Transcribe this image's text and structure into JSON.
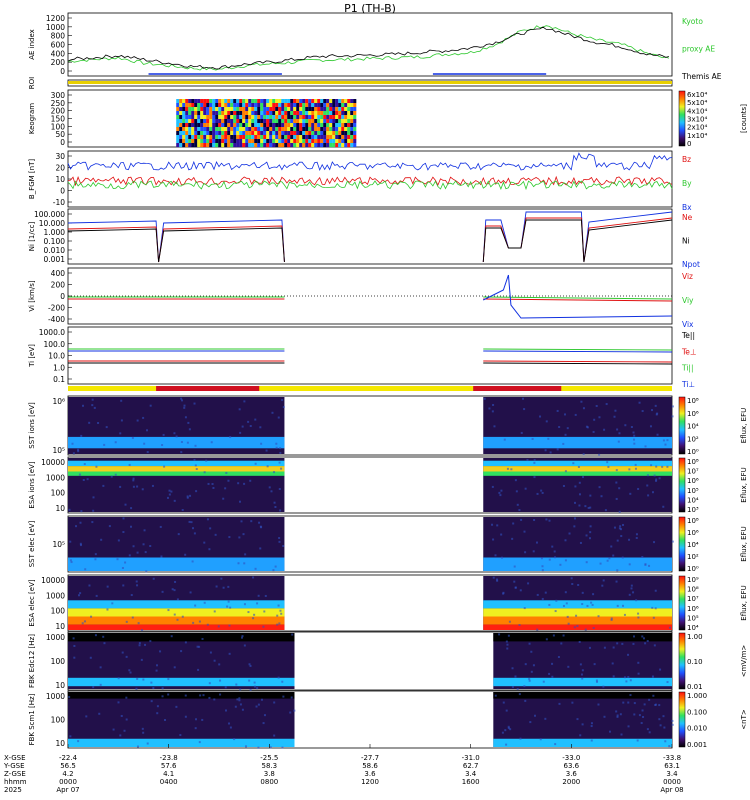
{
  "title": "P1 (TH-B)",
  "colors": {
    "black": "#000000",
    "green": "#2ec82e",
    "red": "#e01010",
    "blue": "#1030e0",
    "yellow": "#f5e800",
    "darkred": "#d01020"
  },
  "chart_data": {
    "type": "time-series-stack",
    "panels": [
      {
        "id": "ae",
        "ylabel": "AE index",
        "ticks": [
          "1200",
          "1000",
          "800",
          "600",
          "400",
          "200",
          "0"
        ],
        "legend": [
          {
            "text": "Kyoto",
            "color": "green"
          },
          {
            "text": "proxy AE",
            "color": "green"
          },
          {
            "text": "Themis AE",
            "color": "black"
          }
        ],
        "series": [
          {
            "name": "Kyoto proxy AE",
            "color": "green",
            "x": [
              0,
              1,
              2,
              3,
              4,
              5,
              6,
              7,
              8,
              9,
              10,
              11,
              12,
              13,
              14,
              15,
              16,
              17,
              18,
              19,
              20,
              21,
              22,
              23,
              24
            ],
            "y": [
              220,
              260,
              300,
              180,
              120,
              60,
              40,
              120,
              160,
              200,
              250,
              260,
              280,
              300,
              320,
              380,
              420,
              600,
              900,
              1050,
              850,
              700,
              600,
              400,
              250
            ]
          },
          {
            "name": "Themis AE",
            "color": "black",
            "x": [
              0,
              1,
              2,
              3,
              4,
              5,
              6,
              7,
              8,
              9,
              10,
              11,
              12,
              13,
              14,
              15,
              16,
              17,
              18,
              19,
              20,
              21,
              22,
              23,
              24
            ],
            "y": [
              260,
              300,
              350,
              260,
              180,
              100,
              80,
              150,
              200,
              260,
              330,
              340,
              360,
              380,
              420,
              460,
              520,
              650,
              850,
              980,
              800,
              650,
              550,
              380,
              300
            ]
          }
        ]
      },
      {
        "id": "roi",
        "ylabel": "ROI"
      },
      {
        "id": "keogram",
        "ylabel": "Keogram",
        "ticks": [
          "300",
          "250",
          "200",
          "150",
          "100",
          "50",
          "0"
        ],
        "cbar": {
          "ticks": [
            "6x10⁴",
            "5x10⁴",
            "4x10⁴",
            "3x10⁴",
            "2x10⁴",
            "1x10⁴",
            "0"
          ],
          "label": "[counts]"
        }
      },
      {
        "id": "bfgm",
        "ylabel": "B_FGM [nT]",
        "ticks": [
          "30",
          "20",
          "10",
          "0",
          "-10"
        ],
        "legend": [
          {
            "text": "Bz",
            "color": "red"
          },
          {
            "text": "By",
            "color": "green"
          },
          {
            "text": "Bx",
            "color": "blue"
          }
        ]
      },
      {
        "id": "ni",
        "ylabel": "Ni [1/cc]",
        "ticks": [
          "100.000",
          "10.000",
          "1.000",
          "0.100",
          "0.010",
          "0.001"
        ],
        "legend": [
          {
            "text": "Ne",
            "color": "red"
          },
          {
            "text": "Ni",
            "color": "black"
          },
          {
            "text": "Npot",
            "color": "blue"
          }
        ]
      },
      {
        "id": "vi",
        "ylabel": "Vi [km/s]",
        "ticks": [
          "400",
          "200",
          "0",
          "-200",
          "-400"
        ],
        "legend": [
          {
            "text": "Viz",
            "color": "red"
          },
          {
            "text": "Viy",
            "color": "green"
          },
          {
            "text": "Vix",
            "color": "blue"
          }
        ]
      },
      {
        "id": "ti",
        "ylabel": "Ti [eV]",
        "ticks": [
          "1000.0",
          "100.0",
          "10.0",
          "1.0",
          "0.1"
        ],
        "legend": [
          {
            "text": "Te||",
            "color": "black"
          },
          {
            "text": "Te⊥",
            "color": "red"
          },
          {
            "text": "Ti||",
            "color": "green"
          },
          {
            "text": "Ti⊥",
            "color": "blue"
          }
        ]
      },
      {
        "id": "sstion",
        "ylabel": "SST ions [eV]",
        "ticks": [
          "10⁶",
          "10⁵"
        ],
        "cbar": {
          "ticks": [
            "10⁸",
            "10⁶",
            "10⁴",
            "10²",
            "10⁰"
          ],
          "label": "Eflux, EFU"
        }
      },
      {
        "id": "esaion",
        "ylabel": "ESA ions [eV]",
        "ticks": [
          "10000",
          "1000",
          "100",
          "10"
        ],
        "cbar": {
          "ticks": [
            "10⁸",
            "10⁷",
            "10⁶",
            "10⁵",
            "10⁴",
            "10³"
          ],
          "label": "Eflux, EFU"
        }
      },
      {
        "id": "sstelec",
        "ylabel": "SST elec [eV]",
        "ticks": [
          "10⁵"
        ],
        "cbar": {
          "ticks": [
            "10⁸",
            "10⁶",
            "10⁴",
            "10²",
            "10⁰"
          ],
          "label": "Eflux, EFU"
        }
      },
      {
        "id": "esaelec",
        "ylabel": "ESA elec [eV]",
        "ticks": [
          "10000",
          "1000",
          "100",
          "10"
        ],
        "cbar": {
          "ticks": [
            "10⁹",
            "10⁸",
            "10⁷",
            "10⁶",
            "10⁵",
            "10⁴"
          ],
          "label": "Eflux, EFU"
        }
      },
      {
        "id": "fbke",
        "ylabel": "FBK Edc12 [Hz]",
        "ticks": [
          "1000",
          "100",
          "10"
        ],
        "cbar": {
          "ticks": [
            "1.00",
            "0.10",
            "0.01"
          ],
          "label": "<mV/m>"
        }
      },
      {
        "id": "fbkb",
        "ylabel": "FBK Scm1 [Hz]",
        "ticks": [
          "1000",
          "100",
          "10"
        ],
        "cbar": {
          "ticks": [
            "1.000",
            "0.100",
            "0.010",
            "0.001"
          ],
          "label": "<nT>"
        }
      }
    ],
    "x_axis": {
      "row_labels": [
        "X-GSE",
        "Y-GSE",
        "Z-GSE",
        "hhmm",
        "2025"
      ],
      "columns": [
        [
          "-22.4",
          "56.5",
          "4.2",
          "0000",
          "Apr 07"
        ],
        [
          "-23.8",
          "57.6",
          "4.1",
          "0400",
          ""
        ],
        [
          "-25.5",
          "58.3",
          "3.8",
          "0800",
          ""
        ],
        [
          "-27.7",
          "58.6",
          "3.6",
          "1200",
          ""
        ],
        [
          "-31.0",
          "62.7",
          "3.4",
          "1600",
          ""
        ],
        [
          "-33.0",
          "63.6",
          "3.6",
          "2000",
          ""
        ],
        [
          "-33.8",
          "63.1",
          "3.4",
          "0000",
          "Apr 08"
        ]
      ]
    }
  }
}
